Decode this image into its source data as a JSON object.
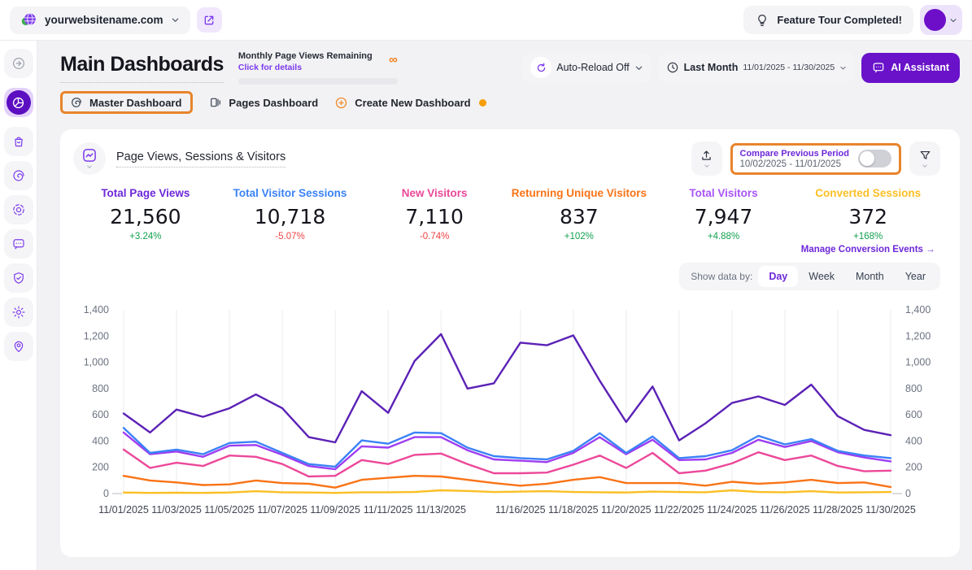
{
  "topbar": {
    "site_name": "yourwebsitename.com",
    "feature_tour_label": "Feature Tour Completed!"
  },
  "header": {
    "title": "Main Dashboards",
    "quota_label": "Monthly Page Views Remaining",
    "quota_link": "Click for details",
    "quota_value": "∞",
    "auto_reload_label": "Auto-Reload Off",
    "period_label": "Last Month",
    "period_range": "11/01/2025 - 11/30/2025",
    "ai_assistant_label": "AI Assistant"
  },
  "tabs": {
    "master": "Master Dashboard",
    "pages": "Pages Dashboard",
    "create": "Create New Dashboard"
  },
  "sidebar": {
    "items": [
      "collapse-arrow",
      "dashboards-pie",
      "ecommerce-bag",
      "behaviour-spiral",
      "session-recordings",
      "communication-chat",
      "privacy-shield",
      "settings-gear",
      "visitor-location"
    ],
    "active_index": 1
  },
  "card": {
    "title": "Page Views, Sessions & Visitors",
    "compare_label": "Compare Previous Period",
    "compare_range": "10/02/2025 - 11/01/2025",
    "compare_toggle_on": false,
    "show_data_by_label": "Show data by:",
    "granularity_options": [
      "Day",
      "Week",
      "Month",
      "Year"
    ],
    "granularity_active": "Day",
    "manage_link": "Manage Conversion Events →"
  },
  "metrics": [
    {
      "label": "Total Page Views",
      "value": "21,560",
      "delta": "+3.24%",
      "direction": "up",
      "color": "#6d28d9"
    },
    {
      "label": "Total Visitor Sessions",
      "value": "10,718",
      "delta": "-5.07%",
      "direction": "down",
      "color": "#3b82f6"
    },
    {
      "label": "New Visitors",
      "value": "7,110",
      "delta": "-0.74%",
      "direction": "down",
      "color": "#ec4899"
    },
    {
      "label": "Returning Unique Visitors",
      "value": "837",
      "delta": "+102%",
      "direction": "up",
      "color": "#f97316"
    },
    {
      "label": "Total Visitors",
      "value": "7,947",
      "delta": "+4.88%",
      "direction": "up",
      "color": "#a855f7"
    },
    {
      "label": "Converted Sessions",
      "value": "372",
      "delta": "+168%",
      "direction": "up",
      "color": "#fbbf24"
    }
  ],
  "chart_data": {
    "type": "line",
    "title": "Page Views, Sessions & Visitors",
    "x": [
      "11/01/2025",
      "11/02/2025",
      "11/03/2025",
      "11/04/2025",
      "11/05/2025",
      "11/06/2025",
      "11/07/2025",
      "11/08/2025",
      "11/09/2025",
      "11/10/2025",
      "11/11/2025",
      "11/12/2025",
      "11/13/2025",
      "11/14/2025",
      "11/15/2025",
      "11/16/2025",
      "11/17/2025",
      "11/18/2025",
      "11/19/2025",
      "11/20/2025",
      "11/21/2025",
      "11/22/2025",
      "11/23/2025",
      "11/24/2025",
      "11/25/2025",
      "11/26/2025",
      "11/27/2025",
      "11/28/2025",
      "11/29/2025",
      "11/30/2025"
    ],
    "x_tick_labels": [
      "11/01/2025",
      "11/03/2025",
      "11/05/2025",
      "11/07/2025",
      "11/09/2025",
      "11/11/2025",
      "11/13/2025",
      "11/16/2025",
      "11/18/2025",
      "11/20/2025",
      "11/22/2025",
      "11/24/2025",
      "11/26/2025",
      "11/28/2025",
      "11/30/2025"
    ],
    "ylim": [
      0,
      1400
    ],
    "yticks": [
      0,
      200,
      400,
      600,
      800,
      1000,
      1200,
      1400
    ],
    "grid": "vertical",
    "series": [
      {
        "name": "Total Page Views",
        "color": "#5b21b6",
        "values": [
          610,
          465,
          640,
          585,
          650,
          755,
          650,
          430,
          390,
          780,
          615,
          1010,
          1215,
          800,
          840,
          1150,
          1130,
          1205,
          860,
          545,
          815,
          405,
          535,
          690,
          740,
          675,
          830,
          590,
          485,
          445
        ]
      },
      {
        "name": "Total Visitor Sessions",
        "color": "#3b82f6",
        "values": [
          500,
          310,
          335,
          300,
          385,
          395,
          310,
          225,
          205,
          405,
          380,
          465,
          460,
          350,
          285,
          270,
          260,
          325,
          460,
          310,
          435,
          270,
          285,
          330,
          440,
          375,
          415,
          325,
          290,
          270
        ]
      },
      {
        "name": "New Visitors",
        "color": "#ec4899",
        "values": [
          335,
          195,
          235,
          210,
          290,
          280,
          225,
          130,
          135,
          255,
          225,
          295,
          305,
          225,
          155,
          155,
          160,
          220,
          290,
          195,
          310,
          155,
          175,
          230,
          315,
          255,
          290,
          210,
          170,
          175
        ]
      },
      {
        "name": "Returning Unique Visitors",
        "color": "#f97316",
        "values": [
          135,
          100,
          85,
          65,
          70,
          100,
          80,
          75,
          45,
          105,
          120,
          135,
          130,
          105,
          80,
          60,
          75,
          105,
          125,
          80,
          80,
          80,
          60,
          90,
          75,
          85,
          105,
          80,
          85,
          50
        ]
      },
      {
        "name": "Total Visitors",
        "color": "#9e3df2",
        "values": [
          465,
          300,
          320,
          280,
          365,
          370,
          295,
          210,
          185,
          360,
          350,
          430,
          430,
          330,
          260,
          250,
          240,
          310,
          430,
          300,
          410,
          255,
          260,
          310,
          410,
          355,
          400,
          315,
          275,
          245
        ]
      },
      {
        "name": "Converted Sessions",
        "color": "#fbbf24",
        "values": [
          8,
          5,
          6,
          5,
          8,
          18,
          10,
          8,
          5,
          10,
          10,
          12,
          25,
          20,
          12,
          15,
          18,
          12,
          10,
          8,
          15,
          12,
          10,
          25,
          12,
          10,
          18,
          8,
          10,
          12
        ]
      }
    ]
  }
}
